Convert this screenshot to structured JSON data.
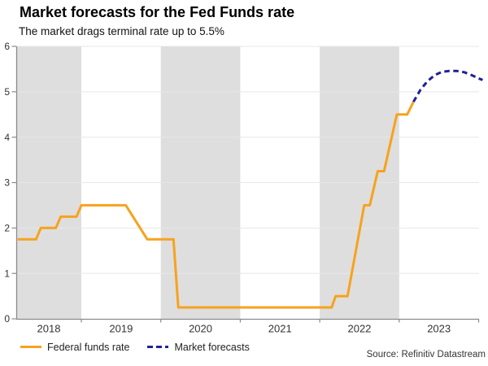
{
  "header": {
    "title": "Market forecasts for the Fed Funds rate",
    "subtitle": "The market drags terminal rate up to 5.5%"
  },
  "source": "Source: Refinitiv Datastream",
  "legend": {
    "items": [
      {
        "label": "Federal funds rate",
        "style": "solid",
        "color": "#F7A21D"
      },
      {
        "label": "Market forecasts",
        "style": "dashed",
        "color": "#20209B"
      }
    ]
  },
  "colors": {
    "fed_line": "#F7A21D",
    "forecast_line": "#20209B",
    "year_band": "#DEDEDE",
    "gridline": "#E7E7E7",
    "axis": "#8A8A8A",
    "tick_label": "#333333",
    "background": "#FFFFFF"
  },
  "chart_data": {
    "type": "line",
    "title": "Market forecasts for the Fed Funds rate",
    "subtitle": "The market drags terminal rate up to 5.5%",
    "xlabel": "",
    "ylabel": "",
    "x_range": [
      2018.2,
      2024.05
    ],
    "ylim": [
      0,
      6
    ],
    "y_ticks": [
      0,
      1,
      2,
      3,
      4,
      5,
      6
    ],
    "x_tick_years": [
      2018,
      2019,
      2020,
      2021,
      2022,
      2023
    ],
    "x_tick_labels": [
      "2018",
      "2019",
      "2020",
      "2021",
      "2022",
      "2023"
    ],
    "shaded_years": [
      2018,
      2020,
      2022
    ],
    "grid": true,
    "legend_position": "bottom-left",
    "series": [
      {
        "name": "Federal funds rate",
        "color": "#F7A21D",
        "dash": false,
        "points": [
          [
            2018.2,
            1.75
          ],
          [
            2018.43,
            1.75
          ],
          [
            2018.49,
            2.0
          ],
          [
            2018.68,
            2.0
          ],
          [
            2018.74,
            2.25
          ],
          [
            2018.94,
            2.25
          ],
          [
            2019.0,
            2.5
          ],
          [
            2019.56,
            2.5
          ],
          [
            2019.83,
            1.75
          ],
          [
            2020.16,
            1.75
          ],
          [
            2020.22,
            0.25
          ],
          [
            2022.15,
            0.25
          ],
          [
            2022.2,
            0.5
          ],
          [
            2022.35,
            0.5
          ],
          [
            2022.56,
            2.5
          ],
          [
            2022.63,
            2.5
          ],
          [
            2022.73,
            3.25
          ],
          [
            2022.81,
            3.25
          ],
          [
            2022.97,
            4.5
          ],
          [
            2023.1,
            4.5
          ],
          [
            2023.18,
            4.78
          ]
        ]
      },
      {
        "name": "Market forecasts",
        "color": "#20209B",
        "dash": true,
        "points": [
          [
            2023.18,
            4.78
          ],
          [
            2023.27,
            5.05
          ],
          [
            2023.36,
            5.24
          ],
          [
            2023.45,
            5.37
          ],
          [
            2023.54,
            5.44
          ],
          [
            2023.63,
            5.46
          ],
          [
            2023.72,
            5.46
          ],
          [
            2023.82,
            5.43
          ],
          [
            2023.92,
            5.36
          ],
          [
            2024.02,
            5.28
          ],
          [
            2024.05,
            5.26
          ]
        ]
      }
    ]
  }
}
